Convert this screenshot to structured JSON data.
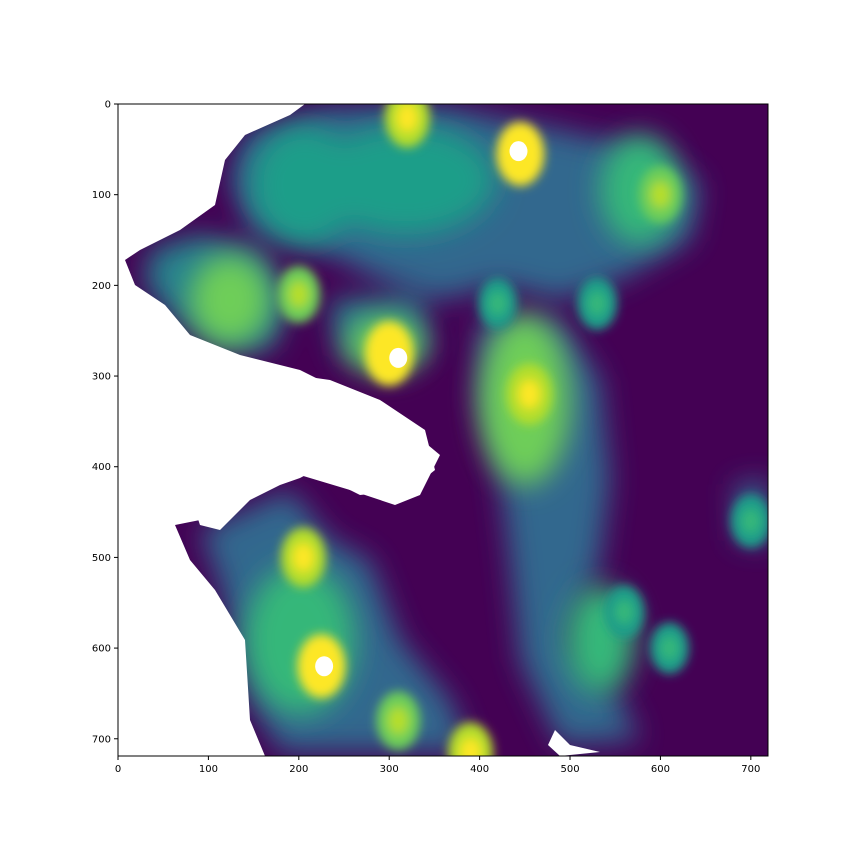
{
  "chart_data": {
    "type": "heatmap",
    "title": "",
    "xlabel": "",
    "ylabel": "",
    "xlim": [
      0,
      719
    ],
    "ylim": [
      719,
      0
    ],
    "x_ticks": [
      0,
      100,
      200,
      300,
      400,
      500,
      600,
      700
    ],
    "y_ticks": [
      0,
      100,
      200,
      300,
      400,
      500,
      600,
      700
    ],
    "colormap": "viridis",
    "colormap_stops": [
      "#440154",
      "#482878",
      "#3e4989",
      "#31688e",
      "#26828e",
      "#1f9e89",
      "#35b779",
      "#6ece58",
      "#b5de2b",
      "#fde725"
    ],
    "nodata_color": "#ffffff",
    "grid": false,
    "high_points": [
      {
        "x": 445,
        "y": 55,
        "level": 1.0
      },
      {
        "x": 320,
        "y": 15,
        "level": 0.85
      },
      {
        "x": 300,
        "y": 275,
        "level": 1.0
      },
      {
        "x": 225,
        "y": 620,
        "level": 1.0
      },
      {
        "x": 455,
        "y": 320,
        "level": 0.9
      },
      {
        "x": 205,
        "y": 500,
        "level": 0.85
      },
      {
        "x": 310,
        "y": 680,
        "level": 0.8
      },
      {
        "x": 390,
        "y": 715,
        "level": 0.85
      },
      {
        "x": 200,
        "y": 210,
        "level": 0.75
      },
      {
        "x": 600,
        "y": 100,
        "level": 0.75
      },
      {
        "x": 530,
        "y": 220,
        "level": 0.6
      },
      {
        "x": 420,
        "y": 220,
        "level": 0.55
      },
      {
        "x": 700,
        "y": 460,
        "level": 0.6
      },
      {
        "x": 560,
        "y": 560,
        "level": 0.6
      },
      {
        "x": 610,
        "y": 600,
        "level": 0.55
      }
    ],
    "nodata_peaks": [
      {
        "x": 443,
        "y": 52
      },
      {
        "x": 310,
        "y": 280
      },
      {
        "x": 228,
        "y": 620
      }
    ]
  }
}
